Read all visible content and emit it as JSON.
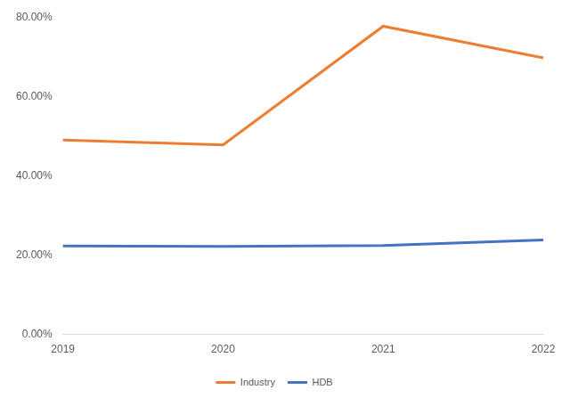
{
  "chart_data": {
    "type": "line",
    "categories": [
      "2019",
      "2020",
      "2021",
      "2022"
    ],
    "series": [
      {
        "name": "Industry",
        "color": "#ed7d31",
        "values": [
          49.0,
          47.8,
          77.7,
          69.7
        ]
      },
      {
        "name": "HDB",
        "color": "#4472c4",
        "values": [
          22.3,
          22.2,
          22.4,
          23.8
        ]
      }
    ],
    "ylim": [
      0,
      80
    ],
    "yticks": [
      {
        "value": 0,
        "label": "0.00%"
      },
      {
        "value": 20,
        "label": "20.00%"
      },
      {
        "value": 40,
        "label": "40.00%"
      },
      {
        "value": 60,
        "label": "60.00%"
      },
      {
        "value": 80,
        "label": "80.00%"
      }
    ],
    "grid": false,
    "legend": "bottom"
  }
}
